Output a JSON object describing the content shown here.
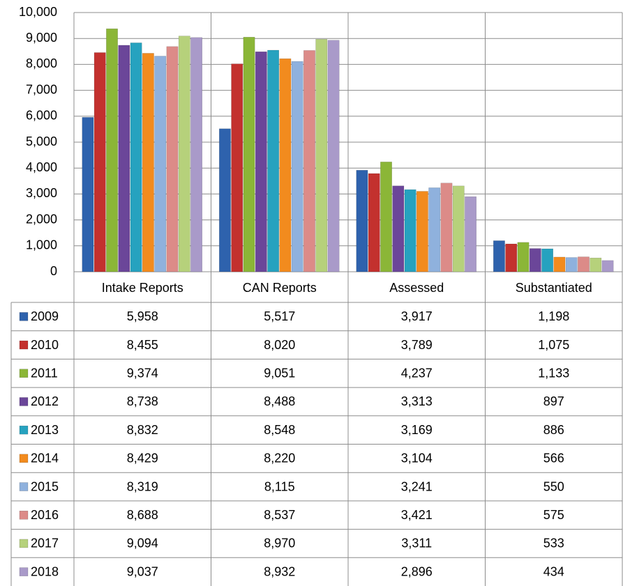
{
  "chart_data": {
    "type": "bar",
    "categories": [
      "Intake Reports",
      "CAN Reports",
      "Assessed",
      "Substantiated"
    ],
    "ylim": [
      0,
      10000
    ],
    "yticks": [
      0,
      {
        "value": 1000,
        "label": "1,000"
      },
      {
        "value": 2000,
        "label": "2,000"
      },
      {
        "value": 3000,
        "label": "3,000"
      },
      {
        "value": 4000,
        "label": "4,000"
      },
      {
        "value": 5000,
        "label": "5,000"
      },
      {
        "value": 6000,
        "label": "6,000"
      },
      {
        "value": 7000,
        "label": "7,000"
      },
      {
        "value": 8000,
        "label": "8,000"
      },
      {
        "value": 9000,
        "label": "9,000"
      },
      {
        "value": 10000,
        "label": "10,000"
      }
    ],
    "grid": true,
    "data_table": true,
    "series": [
      {
        "name": "2009",
        "color": "#2e62ad",
        "values": [
          5958,
          5517,
          3917,
          1198
        ],
        "value_labels": [
          "5,958",
          "5,517",
          "3,917",
          "1,198"
        ]
      },
      {
        "name": "2010",
        "color": "#c3312e",
        "values": [
          8455,
          8020,
          3789,
          1075
        ],
        "value_labels": [
          "8,455",
          "8,020",
          "3,789",
          "1,075"
        ]
      },
      {
        "name": "2011",
        "color": "#8bb637",
        "values": [
          9374,
          9051,
          4237,
          1133
        ],
        "value_labels": [
          "9,374",
          "9,051",
          "4,237",
          "1,133"
        ]
      },
      {
        "name": "2012",
        "color": "#6b4699",
        "values": [
          8738,
          8488,
          3313,
          897
        ],
        "value_labels": [
          "8,738",
          "8,488",
          "3,313",
          "897"
        ]
      },
      {
        "name": "2013",
        "color": "#26a2bf",
        "values": [
          8832,
          8548,
          3169,
          886
        ],
        "value_labels": [
          "8,832",
          "8,548",
          "3,169",
          "886"
        ]
      },
      {
        "name": "2014",
        "color": "#f28b1e",
        "values": [
          8429,
          8220,
          3104,
          566
        ],
        "value_labels": [
          "8,429",
          "8,220",
          "3,104",
          "566"
        ]
      },
      {
        "name": "2015",
        "color": "#8fb1dd",
        "values": [
          8319,
          8115,
          3241,
          550
        ],
        "value_labels": [
          "8,319",
          "8,115",
          "3,241",
          "550"
        ]
      },
      {
        "name": "2016",
        "color": "#dc8b88",
        "values": [
          8688,
          8537,
          3421,
          575
        ],
        "value_labels": [
          "8,688",
          "8,537",
          "3,421",
          "575"
        ]
      },
      {
        "name": "2017",
        "color": "#b6d17b",
        "values": [
          9094,
          8970,
          3311,
          533
        ],
        "value_labels": [
          "9,094",
          "8,970",
          "3,311",
          "533"
        ]
      },
      {
        "name": "2018",
        "color": "#a99ac9",
        "values": [
          9037,
          8932,
          2896,
          434
        ],
        "value_labels": [
          "9,037",
          "8,932",
          "2,896",
          "434"
        ]
      }
    ]
  }
}
